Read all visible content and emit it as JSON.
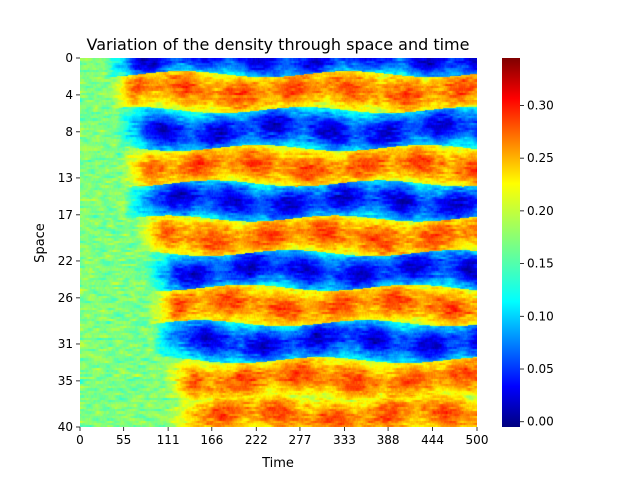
{
  "chart_data": {
    "type": "heatmap",
    "title": "Variation of the density through space and time",
    "xlabel": "Time",
    "ylabel": "Space",
    "x_ticks": [
      "0",
      "55",
      "111",
      "166",
      "222",
      "277",
      "333",
      "388",
      "444",
      "500"
    ],
    "x_tick_values": [
      0,
      55,
      111,
      166,
      222,
      277,
      333,
      388,
      444,
      500
    ],
    "y_ticks": [
      "0",
      "4",
      "8",
      "13",
      "17",
      "22",
      "26",
      "31",
      "35",
      "40"
    ],
    "y_tick_values": [
      0,
      4,
      8,
      13,
      17,
      22,
      26,
      31,
      35,
      40
    ],
    "xlim": [
      0,
      500
    ],
    "ylim": [
      0,
      40
    ],
    "y_inverted": true,
    "colormap": "jet",
    "colorbar": {
      "range": [
        -0.005,
        0.345
      ],
      "ticks": [
        "0.00",
        "0.05",
        "0.10",
        "0.15",
        "0.20",
        "0.25",
        "0.30"
      ],
      "tick_values": [
        0.0,
        0.05,
        0.1,
        0.15,
        0.2,
        0.25,
        0.3
      ]
    },
    "pattern": {
      "initial_density": 0.17,
      "high_band_value": 0.28,
      "low_band_value": 0.02,
      "band_centers_space": [
        0,
        3.5,
        7.8,
        11.7,
        15.5,
        19.3,
        23.0,
        26.8,
        30.7,
        34.8,
        38.8
      ],
      "band_kinds": [
        "low",
        "high",
        "low",
        "high",
        "low",
        "high",
        "low",
        "high",
        "low",
        "high",
        "high"
      ],
      "band_onset_time": [
        30,
        35,
        45,
        50,
        55,
        70,
        80,
        85,
        90,
        105,
        110
      ]
    }
  }
}
